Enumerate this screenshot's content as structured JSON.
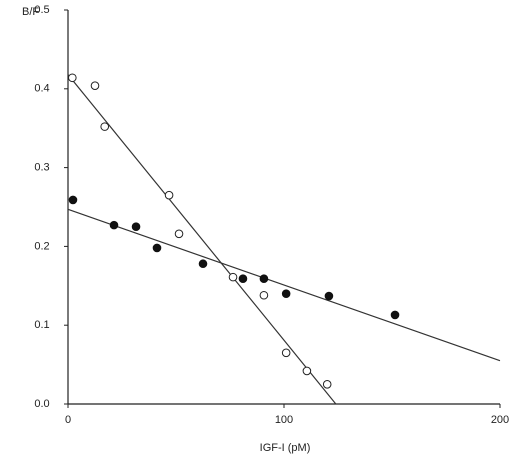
{
  "chart_data": {
    "type": "scatter",
    "y_label": "B/F",
    "x_label": "IGF-I (pM)",
    "xlim": [
      0,
      200
    ],
    "xticks": [
      0,
      100,
      200
    ],
    "ylim": [
      0,
      0.5
    ],
    "yticks": [
      {
        "value": 0,
        "label": "0.0"
      },
      0.1,
      0.2,
      0.3,
      0.4,
      0.5
    ],
    "series": [
      {
        "marker": "open",
        "color": "#222",
        "x": [
          2,
          12.5,
          17,
          46.8,
          51.4,
          76.4,
          90.7,
          101,
          110.6,
          120
        ],
        "values": [
          0.414,
          0.404,
          0.352,
          0.265,
          0.216,
          0.161,
          0.138,
          0.065,
          0.042,
          0.025
        ]
      },
      {
        "marker": "filled",
        "color": "#111",
        "x": [
          2.3,
          21.3,
          31.5,
          41.2,
          62.5,
          81,
          90.7,
          101,
          120.8,
          151.4
        ],
        "values": [
          0.259,
          0.227,
          0.225,
          0.198,
          0.178,
          0.159,
          0.159,
          0.14,
          0.137,
          0.113
        ]
      }
    ],
    "fit_lines": [
      {
        "color": "#333",
        "x": [
          0,
          124
        ],
        "values": [
          0.418,
          0
        ]
      },
      {
        "color": "#333",
        "x": [
          0,
          200
        ],
        "values": [
          0.247,
          0.055
        ]
      }
    ]
  }
}
